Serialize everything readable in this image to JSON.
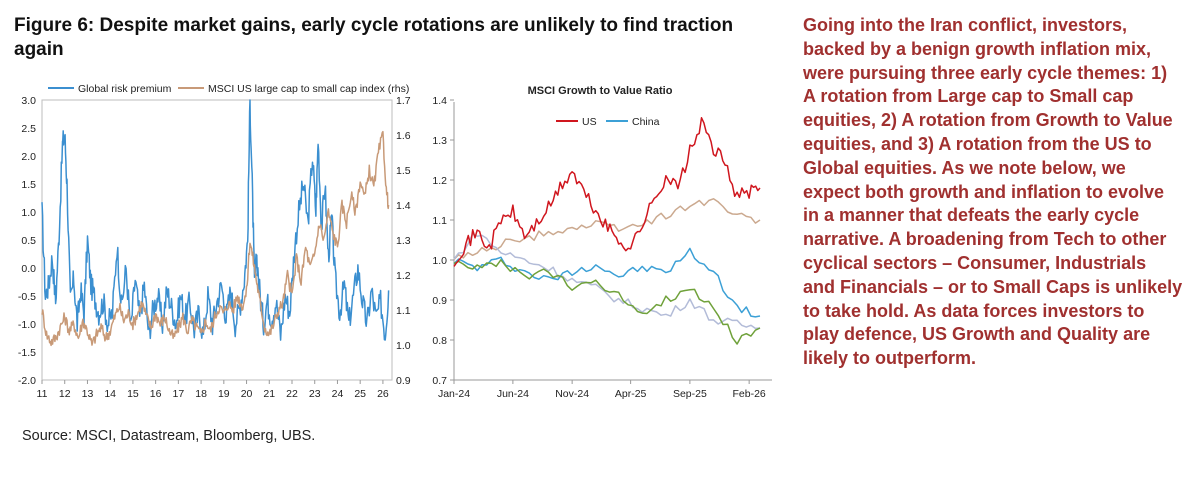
{
  "header": {
    "title": "Figure 6: Despite market gains, early cycle rotations are unlikely to find traction again"
  },
  "footer": {
    "source": "Source: MSCI, Datastream, Bloomberg, UBS."
  },
  "commentary": {
    "text": "Going into the Iran conflict, investors, backed by a benign growth inflation mix, were pursuing three early cycle themes: 1) A rotation from Large cap to Small cap equities, 2) A rotation from Growth to Value equities, and 3) A rotation from the US to Global equities. As we note below, we expect both growth and inflation to evolve in a manner that defeats the early cycle narrative. A broadening from Tech to other cyclical sectors – Consumer, Industrials and Financials – or to Small Caps is unlikely to take hold. As data forces investors to play defence, US Growth and Quality are likely to outperform."
  },
  "chart_data": [
    {
      "type": "line",
      "title": "",
      "legend_position": "top-left",
      "x_ticks": [
        "11",
        "12",
        "13",
        "14",
        "15",
        "16",
        "17",
        "18",
        "19",
        "20",
        "21",
        "22",
        "23",
        "24",
        "25",
        "26"
      ],
      "xlim": [
        2011,
        2026.4
      ],
      "y_left": {
        "ticks": [
          "3.0",
          "2.5",
          "2.0",
          "1.5",
          "1.0",
          "0.5",
          "0.0",
          "-0.5",
          "-1.0",
          "-1.5",
          "-2.0"
        ],
        "ylim": [
          -2.0,
          3.0
        ]
      },
      "y_right": {
        "ticks": [
          "1.7",
          "1.6",
          "1.5",
          "1.4",
          "1.3",
          "1.2",
          "1.1",
          "1.0",
          "0.9"
        ],
        "ylim": [
          0.9,
          1.7
        ]
      },
      "series": [
        {
          "name": "Global risk premium",
          "axis": "left",
          "color": "#3b8fd0",
          "x": [
            2011.0,
            2011.15,
            2011.3,
            2011.45,
            2011.6,
            2011.75,
            2011.9,
            2012.0,
            2012.1,
            2012.25,
            2012.4,
            2012.55,
            2012.7,
            2012.85,
            2013.0,
            2013.15,
            2013.3,
            2013.5,
            2013.7,
            2013.9,
            2014.1,
            2014.3,
            2014.5,
            2014.7,
            2014.9,
            2015.1,
            2015.3,
            2015.5,
            2015.7,
            2015.9,
            2016.1,
            2016.3,
            2016.5,
            2016.7,
            2016.9,
            2017.1,
            2017.3,
            2017.5,
            2017.7,
            2017.9,
            2018.1,
            2018.3,
            2018.5,
            2018.7,
            2018.9,
            2019.1,
            2019.3,
            2019.5,
            2019.7,
            2019.9,
            2020.05,
            2020.15,
            2020.25,
            2020.35,
            2020.45,
            2020.6,
            2020.75,
            2020.9,
            2021.1,
            2021.3,
            2021.5,
            2021.7,
            2021.9,
            2022.1,
            2022.3,
            2022.5,
            2022.7,
            2022.9,
            2023.05,
            2023.15,
            2023.3,
            2023.45,
            2023.6,
            2023.75,
            2023.9,
            2024.1,
            2024.3,
            2024.5,
            2024.7,
            2024.9,
            2025.1,
            2025.3,
            2025.5,
            2025.7,
            2025.9,
            2026.1,
            2026.25
          ],
          "values": [
            1.0,
            -0.5,
            -0.3,
            0.2,
            -0.6,
            0.6,
            2.2,
            2.4,
            1.5,
            -0.6,
            -0.2,
            -1.0,
            -0.4,
            -0.8,
            0.5,
            -0.3,
            -0.5,
            -0.8,
            -0.6,
            -1.0,
            -0.8,
            0.4,
            -0.7,
            0.0,
            -1.1,
            -0.2,
            -0.9,
            -0.3,
            -1.2,
            -0.7,
            -0.5,
            -1.0,
            -0.4,
            -0.7,
            -1.0,
            -0.5,
            -0.9,
            -0.6,
            -1.1,
            -0.8,
            -1.2,
            -0.5,
            -1.0,
            -0.6,
            -0.3,
            -0.9,
            -0.4,
            -1.0,
            -0.7,
            -0.2,
            0.5,
            3.0,
            1.5,
            -0.3,
            0.2,
            -0.5,
            -1.0,
            -0.6,
            -0.9,
            -0.6,
            -1.2,
            -0.5,
            -0.8,
            0.3,
            1.0,
            1.5,
            0.8,
            2.0,
            1.0,
            2.3,
            0.7,
            1.5,
            0.2,
            0.9,
            -0.2,
            -0.8,
            -0.3,
            -1.0,
            -0.5,
            0.0,
            -0.6,
            -1.0,
            -0.4,
            -0.9,
            -0.6,
            -1.2,
            -0.4
          ]
        },
        {
          "name": "MSCI US large cap to small cap index (rhs)",
          "axis": "right",
          "color": "#c89a78",
          "x": [
            2011.0,
            2011.2,
            2011.4,
            2011.6,
            2011.8,
            2012.0,
            2012.2,
            2012.4,
            2012.6,
            2012.8,
            2013.0,
            2013.2,
            2013.4,
            2013.6,
            2013.8,
            2014.0,
            2014.2,
            2014.4,
            2014.6,
            2014.8,
            2015.0,
            2015.2,
            2015.4,
            2015.6,
            2015.8,
            2016.0,
            2016.2,
            2016.4,
            2016.6,
            2016.8,
            2017.0,
            2017.2,
            2017.4,
            2017.6,
            2017.8,
            2018.0,
            2018.2,
            2018.4,
            2018.6,
            2018.8,
            2019.0,
            2019.2,
            2019.4,
            2019.6,
            2019.8,
            2020.0,
            2020.15,
            2020.3,
            2020.45,
            2020.6,
            2020.8,
            2021.0,
            2021.2,
            2021.4,
            2021.6,
            2021.8,
            2022.0,
            2022.2,
            2022.4,
            2022.6,
            2022.8,
            2023.0,
            2023.2,
            2023.4,
            2023.6,
            2023.8,
            2024.0,
            2024.2,
            2024.4,
            2024.6,
            2024.8,
            2025.0,
            2025.2,
            2025.4,
            2025.6,
            2025.8,
            2026.0,
            2026.15,
            2026.25
          ],
          "values": [
            1.1,
            1.03,
            1.01,
            1.02,
            1.05,
            1.08,
            1.04,
            1.06,
            1.02,
            1.07,
            1.04,
            1.0,
            1.03,
            1.05,
            1.02,
            1.04,
            1.08,
            1.11,
            1.07,
            1.09,
            1.06,
            1.09,
            1.12,
            1.08,
            1.05,
            1.09,
            1.06,
            1.08,
            1.04,
            1.02,
            1.05,
            1.08,
            1.04,
            1.07,
            1.05,
            1.03,
            1.07,
            1.04,
            1.08,
            1.11,
            1.09,
            1.12,
            1.1,
            1.14,
            1.11,
            1.15,
            1.3,
            1.24,
            1.18,
            1.12,
            1.05,
            1.03,
            1.06,
            1.1,
            1.12,
            1.2,
            1.14,
            1.25,
            1.18,
            1.28,
            1.22,
            1.26,
            1.35,
            1.3,
            1.38,
            1.32,
            1.28,
            1.4,
            1.35,
            1.43,
            1.38,
            1.47,
            1.42,
            1.5,
            1.45,
            1.55,
            1.6,
            1.44,
            1.4
          ]
        }
      ]
    },
    {
      "type": "line",
      "title": "MSCI Growth to Value Ratio",
      "legend_position": "top-left",
      "x_ticks": [
        "Jan-24",
        "Jun-24",
        "Nov-24",
        "Apr-25",
        "Sep-25",
        "Feb-26"
      ],
      "y_ticks": [
        "1.4",
        "1.3",
        "1.2",
        "1.1",
        "1.0",
        "0.9",
        "0.8",
        "0.7"
      ],
      "ylim": [
        0.7,
        1.4
      ],
      "series": [
        {
          "name": "US",
          "color": "#d0161e",
          "x": [
            "2024-01",
            "2024-02",
            "2024-03",
            "2024-04",
            "2024-05",
            "2024-06",
            "2024-07",
            "2024-08",
            "2024-09",
            "2024-10",
            "2024-11",
            "2024-12",
            "2025-01",
            "2025-02",
            "2025-03",
            "2025-04",
            "2025-05",
            "2025-06",
            "2025-07",
            "2025-08",
            "2025-09",
            "2025-10",
            "2025-11",
            "2025-12",
            "2026-01",
            "2026-02",
            "2026-03"
          ],
          "values": [
            1.0,
            1.04,
            1.07,
            1.03,
            1.1,
            1.12,
            1.06,
            1.09,
            1.13,
            1.18,
            1.22,
            1.17,
            1.12,
            1.08,
            1.05,
            1.03,
            1.09,
            1.15,
            1.21,
            1.18,
            1.27,
            1.34,
            1.28,
            1.24,
            1.16,
            1.17,
            1.18
          ]
        },
        {
          "name": "",
          "color": "#cba98f",
          "x": [
            "2024-01",
            "2024-03",
            "2024-05",
            "2024-07",
            "2024-09",
            "2024-11",
            "2025-01",
            "2025-03",
            "2025-05",
            "2025-07",
            "2025-09",
            "2025-11",
            "2026-01",
            "2026-03"
          ],
          "values": [
            1.0,
            1.02,
            1.04,
            1.05,
            1.07,
            1.08,
            1.09,
            1.08,
            1.09,
            1.11,
            1.14,
            1.15,
            1.11,
            1.1
          ]
        },
        {
          "name": "China",
          "color": "#3ca0d6",
          "x": [
            "2024-01",
            "2024-03",
            "2024-05",
            "2024-07",
            "2024-09",
            "2024-11",
            "2025-01",
            "2025-03",
            "2025-05",
            "2025-07",
            "2025-09",
            "2025-11",
            "2026-01",
            "2026-03"
          ],
          "values": [
            1.0,
            0.98,
            1.0,
            0.97,
            0.95,
            0.97,
            0.99,
            0.96,
            0.98,
            0.97,
            1.02,
            0.97,
            0.88,
            0.86
          ]
        },
        {
          "name": "",
          "color": "#b3bcd8",
          "x": [
            "2024-01",
            "2024-03",
            "2024-05",
            "2024-07",
            "2024-09",
            "2024-11",
            "2025-01",
            "2025-03",
            "2025-05",
            "2025-07",
            "2025-09",
            "2025-11",
            "2026-01",
            "2026-03"
          ],
          "values": [
            1.0,
            1.07,
            1.02,
            1.0,
            0.98,
            0.95,
            0.93,
            0.9,
            0.88,
            0.86,
            0.9,
            0.85,
            0.84,
            0.83
          ]
        },
        {
          "name": "",
          "color": "#6fa13a",
          "x": [
            "2024-01",
            "2024-03",
            "2024-05",
            "2024-07",
            "2024-09",
            "2024-11",
            "2025-01",
            "2025-03",
            "2025-05",
            "2025-07",
            "2025-09",
            "2025-11",
            "2026-01",
            "2026-03"
          ],
          "values": [
            1.0,
            0.98,
            0.99,
            0.96,
            0.97,
            0.93,
            0.95,
            0.91,
            0.87,
            0.9,
            0.93,
            0.88,
            0.8,
            0.83
          ]
        }
      ]
    }
  ]
}
